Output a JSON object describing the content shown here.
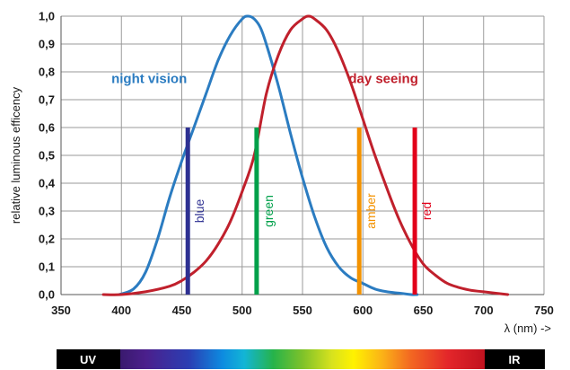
{
  "chart_data": {
    "type": "line",
    "title": "",
    "xlabel": "λ (nm) ->",
    "ylabel": "relative luminous efficency",
    "xlim": [
      350,
      750
    ],
    "ylim": [
      0.0,
      1.0
    ],
    "x_ticks": [
      "350",
      "400",
      "450",
      "500",
      "550",
      "600",
      "650",
      "700",
      "750"
    ],
    "y_ticks": [
      "0,0",
      "0,1",
      "0,2",
      "0,3",
      "0,4",
      "0,5",
      "0,6",
      "0,7",
      "0,8",
      "0,9",
      "1,0"
    ],
    "grid": true,
    "series": [
      {
        "name": "night vision",
        "color": "#2b7cc1",
        "x": [
          398,
          410,
          420,
          430,
          440,
          450,
          460,
          470,
          480,
          490,
          500,
          505,
          510,
          515,
          520,
          530,
          540,
          550,
          560,
          570,
          580,
          590,
          600,
          610,
          620,
          630,
          640,
          645
        ],
        "y": [
          0.0,
          0.02,
          0.08,
          0.2,
          0.35,
          0.48,
          0.6,
          0.72,
          0.84,
          0.93,
          0.99,
          1.0,
          0.99,
          0.96,
          0.9,
          0.75,
          0.58,
          0.42,
          0.28,
          0.17,
          0.1,
          0.06,
          0.04,
          0.02,
          0.01,
          0.005,
          0.0,
          0.0
        ]
      },
      {
        "name": "day seeing",
        "color": "#c0202c",
        "x": [
          385,
          400,
          420,
          440,
          450,
          460,
          470,
          480,
          490,
          500,
          510,
          520,
          530,
          540,
          550,
          555,
          560,
          570,
          580,
          590,
          600,
          610,
          620,
          630,
          640,
          650,
          660,
          670,
          680,
          690,
          700,
          720
        ],
        "y": [
          0.0,
          0.0,
          0.01,
          0.03,
          0.05,
          0.08,
          0.12,
          0.18,
          0.26,
          0.37,
          0.5,
          0.72,
          0.86,
          0.95,
          0.99,
          1.0,
          0.99,
          0.95,
          0.87,
          0.76,
          0.63,
          0.5,
          0.38,
          0.27,
          0.18,
          0.11,
          0.07,
          0.04,
          0.025,
          0.015,
          0.01,
          0.0
        ]
      }
    ],
    "markers": [
      {
        "label": "blue",
        "x": 455,
        "y": 0.6,
        "color": "#2e3192"
      },
      {
        "label": "green",
        "x": 512,
        "y": 0.6,
        "color": "#00a04a"
      },
      {
        "label": "amber",
        "x": 597,
        "y": 0.6,
        "color": "#f39200"
      },
      {
        "label": "red",
        "x": 643,
        "y": 0.6,
        "color": "#e2001a"
      }
    ],
    "spectrum_band": {
      "left_label": "UV",
      "right_label": "IR"
    }
  }
}
